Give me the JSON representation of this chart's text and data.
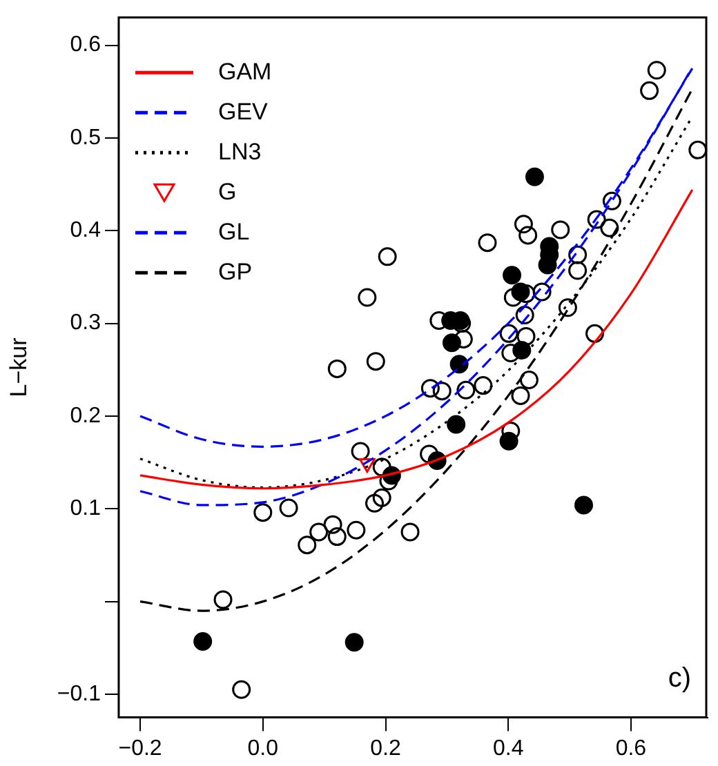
{
  "chart_data": {
    "type": "scatter",
    "ylabel": "L−kur",
    "xlim": [
      -0.235,
      0.725
    ],
    "ylim": [
      -0.125,
      0.63
    ],
    "xticks": [
      {
        "value": -0.2,
        "label": "−0.2"
      },
      {
        "value": 0,
        "label": "0.0"
      },
      0.2,
      0.4,
      0.6
    ],
    "yticks": [
      {
        "value": -0.1,
        "label": "−0.1"
      },
      {
        "value": 0,
        "label": null
      },
      0.1,
      0.2,
      0.3,
      0.4,
      0.5,
      0.6
    ],
    "grid": false,
    "legend": "top left",
    "annotations": [
      "c)"
    ],
    "series": [
      {
        "name": "GAM",
        "type": "line",
        "color": "#ff0000",
        "line_style": "solid",
        "marker": "none",
        "x": [
          -0.2,
          -0.1,
          0,
          0.1,
          0.2,
          0.3,
          0.4,
          0.5,
          0.6,
          0.7
        ],
        "values": [
          0.136,
          0.126,
          0.122,
          0.126,
          0.136,
          0.157,
          0.193,
          0.249,
          0.332,
          0.444
        ]
      },
      {
        "name": "GEV",
        "type": "line",
        "color": "#0000ff",
        "line_style": "dashed",
        "marker": "none",
        "x": [
          -0.2,
          -0.1,
          0,
          0.1,
          0.2,
          0.3,
          0.4,
          0.5,
          0.6,
          0.7
        ],
        "values": [
          0.119,
          0.104,
          0.107,
          0.127,
          0.163,
          0.215,
          0.283,
          0.366,
          0.464,
          0.576
        ]
      },
      {
        "name": "LN3",
        "type": "line",
        "color": "#000000",
        "line_style": "dotted",
        "marker": "none",
        "x": [
          -0.2,
          -0.1,
          0,
          0.1,
          0.2,
          0.3,
          0.4,
          0.5,
          0.6,
          0.7
        ],
        "values": [
          0.154,
          0.131,
          0.123,
          0.131,
          0.154,
          0.194,
          0.249,
          0.323,
          0.413,
          0.523
        ]
      },
      {
        "name": "G",
        "color": "#ff0000",
        "marker": "triangle",
        "x": [
          0.17
        ],
        "values": [
          0.149
        ]
      },
      {
        "name": "GL",
        "type": "line",
        "color": "#0000ff",
        "line_style": "dashed",
        "marker": "none",
        "x": [
          -0.2,
          -0.1,
          0,
          0.1,
          0.2,
          0.3,
          0.4,
          0.5,
          0.6,
          0.7
        ],
        "values": [
          0.2,
          0.175,
          0.167,
          0.175,
          0.2,
          0.242,
          0.3,
          0.375,
          0.467,
          0.575
        ]
      },
      {
        "name": "GP",
        "type": "line",
        "color": "#000000",
        "line_style": "dashed",
        "marker": "none",
        "x": [
          -0.2,
          -0.1,
          0,
          0.1,
          0.2,
          0.3,
          0.4,
          0.5,
          0.6,
          0.7
        ],
        "values": [
          0,
          -0.01,
          0,
          0.029,
          0.077,
          0.142,
          0.222,
          0.318,
          0.429,
          0.553
        ]
      },
      {
        "color": "#000000",
        "marker": "circle",
        "x": [
          0.642,
          0.63,
          0.709,
          0.569,
          0.544,
          0.565,
          0.425,
          0.432,
          0.485,
          0.366,
          0.203,
          0.513,
          0.513,
          0.17,
          0.408,
          0.429,
          0.455,
          0.497,
          0.287,
          0.324,
          0.327,
          0.427,
          0.429,
          0.401,
          0.404,
          0.541,
          0.121,
          0.184,
          0.273,
          0.292,
          0.331,
          0.359,
          0.434,
          0.42,
          0.404,
          0.159,
          0.271,
          0.194,
          0.205,
          0.194,
          0.182,
          0.042,
          0,
          0.091,
          0.114,
          0.121,
          0.152,
          0.24,
          0.072,
          -0.065,
          -0.035
        ],
        "values": [
          0.573,
          0.551,
          0.487,
          0.432,
          0.412,
          0.403,
          0.407,
          0.395,
          0.401,
          0.387,
          0.372,
          0.374,
          0.357,
          0.328,
          0.328,
          0.332,
          0.334,
          0.317,
          0.303,
          0.3,
          0.283,
          0.309,
          0.286,
          0.289,
          0.268,
          0.289,
          0.251,
          0.259,
          0.23,
          0.227,
          0.228,
          0.233,
          0.239,
          0.222,
          0.184,
          0.162,
          0.159,
          0.145,
          0.13,
          0.112,
          0.106,
          0.101,
          0.096,
          0.075,
          0.083,
          0.07,
          0.077,
          0.075,
          0.061,
          0.002,
          -0.095
        ]
      },
      {
        "color": "#000000",
        "marker": "circle",
        "x": [
          0.443,
          0.467,
          0.467,
          0.464,
          0.406,
          0.42,
          0.322,
          0.306,
          0.308,
          0.32,
          0.422,
          0.315,
          0.284,
          0.21,
          0.401,
          0.523,
          -0.098,
          0.149
        ],
        "values": [
          0.458,
          0.383,
          0.374,
          0.363,
          0.352,
          0.334,
          0.303,
          0.303,
          0.279,
          0.256,
          0.271,
          0.191,
          0.152,
          0.136,
          0.173,
          0.104,
          -0.043,
          -0.044
        ]
      }
    ]
  }
}
